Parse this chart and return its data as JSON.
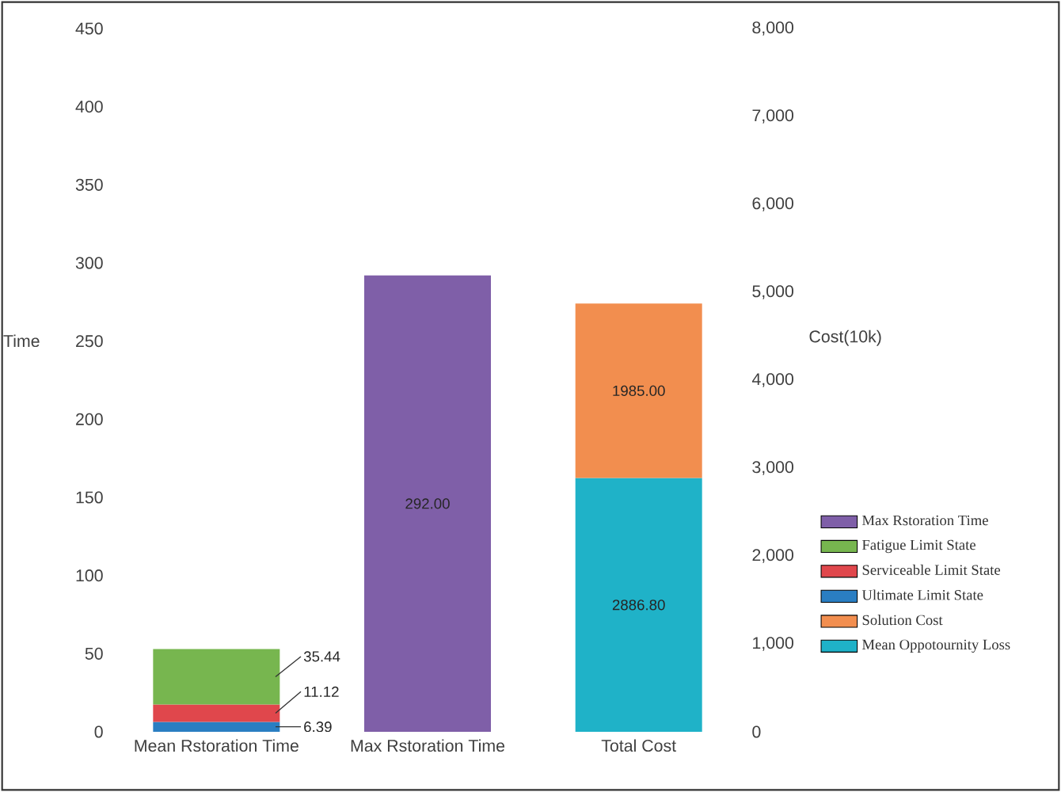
{
  "chart_data": {
    "type": "bar",
    "stacked": true,
    "categories": [
      "Mean Rstoration Time",
      "Max Rstoration Time",
      "Total Cost"
    ],
    "ylabel": "Time",
    "y2label": "Cost(10k)",
    "ylim": [
      0,
      450
    ],
    "yticks": [
      0,
      50,
      100,
      150,
      200,
      250,
      300,
      350,
      400,
      450
    ],
    "y2lim": [
      0,
      8000
    ],
    "y2ticks": [
      0,
      {
        "value": 1000,
        "label": "1,000"
      },
      {
        "value": 2000,
        "label": "2,000"
      },
      {
        "value": 3000,
        "label": "3,000"
      },
      {
        "value": 4000,
        "label": "4,000"
      },
      {
        "value": 5000,
        "label": "5,000"
      },
      {
        "value": 6000,
        "label": "6,000"
      },
      {
        "value": 7000,
        "label": "7,000"
      },
      {
        "value": 8000,
        "label": "8,000"
      }
    ],
    "series": [
      {
        "name": "Ultimate Limit State",
        "color": "#2a7ec2",
        "values": [
          6.39,
          null,
          null
        ],
        "value_labels": [
          "6.39",
          null,
          null
        ]
      },
      {
        "name": "Serviceable Limit State",
        "color": "#e0474c",
        "values": [
          11.12,
          null,
          null
        ],
        "value_labels": [
          "11.12",
          null,
          null
        ]
      },
      {
        "name": "Fatigue Limit State",
        "color": "#77b64f",
        "values": [
          35.44,
          null,
          null
        ],
        "value_labels": [
          "35.44",
          null,
          null
        ]
      },
      {
        "name": "Max Rstoration Time",
        "color": "#7f5fa8",
        "values": [
          null,
          292.0,
          null
        ],
        "value_labels": [
          null,
          "292.00",
          null
        ]
      },
      {
        "name": "Mean Oppotournity Loss",
        "color": "#1fb2c8",
        "axis": "y2",
        "values": [
          null,
          null,
          2886.8
        ],
        "value_labels": [
          null,
          null,
          "2886.80"
        ]
      },
      {
        "name": "Solution Cost",
        "color": "#f28e4f",
        "axis": "y2",
        "values": [
          null,
          null,
          1985.0
        ],
        "value_labels": [
          null,
          null,
          "1985.00"
        ]
      }
    ],
    "legend": "right",
    "grid": false
  }
}
